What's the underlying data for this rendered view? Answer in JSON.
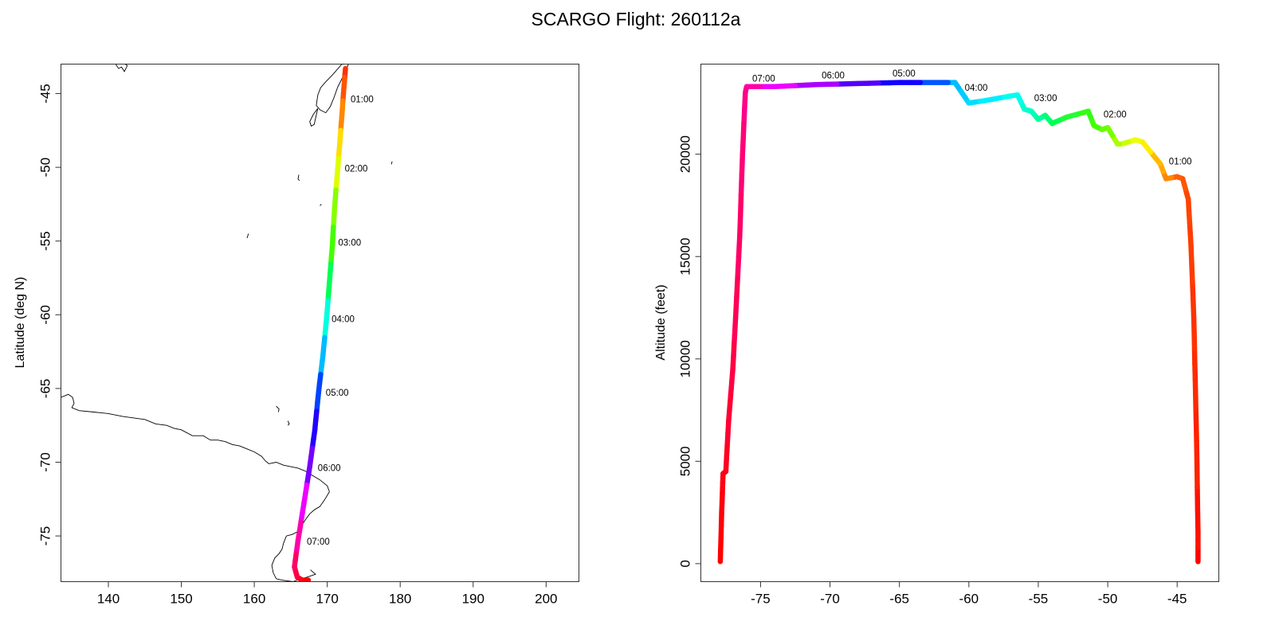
{
  "title": "SCARGO Flight: 260112a",
  "chart_data": [
    {
      "type": "line",
      "panel": "map",
      "title": "",
      "xlabel": "",
      "ylabel": "Latitude (deg N)",
      "xlim": [
        133.5,
        204.5
      ],
      "ylim": [
        -78.1,
        -43.0
      ],
      "xticks": [
        "140",
        "150",
        "160",
        "170",
        "180",
        "190",
        "200"
      ],
      "yticks": [
        "-45",
        "-50",
        "-55",
        "-60",
        "-65",
        "-70",
        "-75"
      ],
      "track": {
        "x": [
          172.5,
          172.3,
          172.0,
          171.7,
          171.4,
          171.0,
          170.7,
          170.3,
          169.9,
          169.4,
          168.8,
          168.3,
          167.6,
          166.8,
          166.0,
          165.5,
          165.9,
          166.6,
          167.4
        ],
        "y": [
          -43.3,
          -44.5,
          -46.5,
          -48.5,
          -50.3,
          -52.8,
          -55.3,
          -57.8,
          -60.3,
          -62.8,
          -65.3,
          -67.8,
          -70.3,
          -72.8,
          -75.3,
          -77.1,
          -77.8,
          -78.0,
          -78.0
        ],
        "color": [
          "#ff3000",
          "#ff5500",
          "#ff8800",
          "#ffdd00",
          "#ddff00",
          "#88ff00",
          "#44ff00",
          "#00ff55",
          "#00ffdd",
          "#00bbff",
          "#0044ff",
          "#2200ff",
          "#7700ff",
          "#ee00ff",
          "#ff00aa",
          "#ff0066",
          "#ff0044",
          "#ff0022",
          "#ff0000"
        ]
      },
      "time_labels": [
        {
          "label": "01:00",
          "x": 173.2,
          "y": -45.6
        },
        {
          "label": "02:00",
          "x": 172.4,
          "y": -50.3
        },
        {
          "label": "03:00",
          "x": 171.5,
          "y": -55.3
        },
        {
          "label": "04:00",
          "x": 170.6,
          "y": -60.5
        },
        {
          "label": "05:00",
          "x": 169.8,
          "y": -65.5
        },
        {
          "label": "06:00",
          "x": 168.7,
          "y": -70.6
        },
        {
          "label": "07:00",
          "x": 167.2,
          "y": -75.6
        }
      ],
      "coastlines": [
        {
          "x": [
            172.0,
            171.3,
            170.6,
            169.8,
            169.1,
            168.7,
            168.5,
            169.0,
            169.8,
            170.4,
            170.9,
            171.4,
            172.0,
            172.6,
            172.9,
            172.7,
            172.3,
            172.0
          ],
          "y": [
            -43.0,
            -43.4,
            -43.8,
            -44.2,
            -44.6,
            -45.1,
            -45.8,
            -46.1,
            -46.3,
            -45.9,
            -45.3,
            -44.6,
            -44.0,
            -43.4,
            -43.0,
            -42.9,
            -43.0,
            -43.0
          ]
        },
        {
          "x": [
            168.7,
            168.1,
            167.6,
            167.8,
            168.2,
            168.7
          ],
          "y": [
            -46.0,
            -46.4,
            -46.9,
            -47.2,
            -47.1,
            -46.0
          ]
        },
        {
          "x": [
            141.0,
            141.4,
            141.8,
            142.2,
            142.6,
            142.3
          ],
          "y": [
            -43.0,
            -43.3,
            -43.2,
            -43.5,
            -43.1,
            -43.0
          ]
        },
        {
          "x": [
            133.5,
            134.5,
            135.1,
            135.3,
            135.0,
            136.0,
            138.0,
            140.0,
            142.0,
            143.5,
            145.0,
            146.5,
            148.0,
            149.0,
            150.0,
            151.5,
            153.0,
            154.0,
            155.0,
            156.0,
            157.0,
            158.0,
            159.0,
            160.0,
            161.0,
            161.5,
            162.0,
            163.0,
            164.0,
            165.0,
            166.0,
            167.0,
            168.0,
            169.0,
            170.0,
            170.3
          ],
          "y": [
            -65.6,
            -65.4,
            -65.6,
            -66.0,
            -66.3,
            -66.5,
            -66.6,
            -66.7,
            -66.9,
            -67.0,
            -67.1,
            -67.4,
            -67.5,
            -67.7,
            -67.8,
            -68.2,
            -68.2,
            -68.5,
            -68.5,
            -68.6,
            -68.8,
            -68.9,
            -69.1,
            -69.3,
            -69.6,
            -69.9,
            -70.1,
            -70.0,
            -70.2,
            -70.3,
            -70.4,
            -70.6,
            -70.9,
            -71.2,
            -71.6,
            -72.0
          ]
        },
        {
          "x": [
            170.3,
            169.7,
            169.0,
            168.3,
            167.6,
            167.0,
            166.5,
            166.0,
            165.2,
            164.4,
            164.0,
            163.8,
            163.4,
            162.8,
            162.4,
            162.6,
            163.0,
            163.8,
            164.6,
            165.3,
            165.9,
            166.5,
            167.2,
            167.8,
            168.4,
            167.7
          ],
          "y": [
            -72.0,
            -72.5,
            -73.0,
            -73.2,
            -73.5,
            -73.9,
            -74.3,
            -74.7,
            -74.9,
            -75.0,
            -75.5,
            -75.9,
            -76.2,
            -76.5,
            -77.0,
            -77.5,
            -77.9,
            -78.0,
            -78.05,
            -78.1,
            -78.0,
            -77.9,
            -77.8,
            -77.7,
            -77.6,
            -77.3
          ]
        },
        {
          "x": [
            159.2,
            159.0
          ],
          "y": [
            -54.5,
            -54.8
          ]
        },
        {
          "x": [
            166.1,
            166.0,
            166.2
          ],
          "y": [
            -50.5,
            -50.8,
            -50.9
          ]
        },
        {
          "x": [
            169.2,
            169.0
          ],
          "y": [
            -52.5,
            -52.6
          ]
        },
        {
          "x": [
            178.9,
            178.8
          ],
          "y": [
            -49.6,
            -49.8
          ]
        },
        {
          "x": [
            163.0,
            163.4,
            163.3
          ],
          "y": [
            -66.2,
            -66.4,
            -66.6
          ]
        },
        {
          "x": [
            164.6,
            164.8,
            164.6
          ],
          "y": [
            -67.2,
            -67.4,
            -67.5
          ]
        }
      ]
    },
    {
      "type": "line",
      "panel": "altitude",
      "title": "",
      "xlabel": "",
      "ylabel": "Altitude (feet)",
      "xlim": [
        -79.3,
        -42.0
      ],
      "ylim": [
        -880,
        24400
      ],
      "xticks": [
        "-75",
        "-70",
        "-65",
        "-60",
        "-55",
        "-50",
        "-45"
      ],
      "yticks": [
        "0",
        "5000",
        "10000",
        "15000",
        "20000"
      ],
      "track": {
        "x": [
          -43.5,
          -43.5,
          -43.6,
          -43.7,
          -43.8,
          -44.0,
          -44.2,
          -44.6,
          -45.0,
          -45.8,
          -46.2,
          -46.3,
          -47.5,
          -48.0,
          -49.0,
          -49.3,
          -50.0,
          -50.4,
          -51.0,
          -51.4,
          -53.0,
          -54.0,
          -54.5,
          -55.0,
          -55.5,
          -56.0,
          -56.5,
          -59.0,
          -60.0,
          -60.5,
          -61.0,
          -62.0,
          -65.0,
          -68.0,
          -71.0,
          -74.0,
          -76.0,
          -76.1,
          -76.3,
          -76.5,
          -76.8,
          -77.0,
          -77.3,
          -77.5,
          -77.7,
          -77.8,
          -77.9
        ],
        "y": [
          100,
          1500,
          6000,
          9000,
          12000,
          15500,
          17800,
          18800,
          18900,
          18800,
          19500,
          19600,
          20600,
          20700,
          20500,
          20500,
          21300,
          21200,
          21400,
          22100,
          21800,
          21500,
          21900,
          21700,
          22100,
          22200,
          22900,
          22600,
          22500,
          23000,
          23500,
          23500,
          23500,
          23450,
          23400,
          23300,
          23300,
          23000,
          20000,
          16000,
          12000,
          9500,
          7000,
          4500,
          4400,
          2500,
          100
        ],
        "color": [
          "#ff0000",
          "#ff1100",
          "#ff2200",
          "#ff2a00",
          "#ff3300",
          "#ff3d00",
          "#ff4400",
          "#ff5500",
          "#ff6000",
          "#ff8800",
          "#ffaa00",
          "#ffbb00",
          "#ffee00",
          "#eeff00",
          "#ccff00",
          "#aaff00",
          "#77ff00",
          "#66ff00",
          "#44ff00",
          "#33ff11",
          "#22ff33",
          "#00ff55",
          "#00ff77",
          "#00ff99",
          "#00ffbb",
          "#00ffcc",
          "#00ffee",
          "#00eeff",
          "#00ddff",
          "#00ccff",
          "#00bbff",
          "#0055ff",
          "#1100ff",
          "#5500ff",
          "#aa00ff",
          "#ee00ff",
          "#ff00aa",
          "#ff0088",
          "#ff0077",
          "#ff0066",
          "#ff0055",
          "#ff0044",
          "#ff0033",
          "#ff0022",
          "#ff0011",
          "#ff0008",
          "#ff0000"
        ]
      },
      "time_labels": [
        {
          "label": "01:00",
          "x": -45.6,
          "y": 19500
        },
        {
          "label": "02:00",
          "x": -50.3,
          "y": 21800
        },
        {
          "label": "03:00",
          "x": -55.3,
          "y": 22600
        },
        {
          "label": "04:00",
          "x": -60.3,
          "y": 23100
        },
        {
          "label": "05:00",
          "x": -65.5,
          "y": 23800
        },
        {
          "label": "06:00",
          "x": -70.6,
          "y": 23700
        },
        {
          "label": "07:00",
          "x": -75.6,
          "y": 23550
        }
      ]
    }
  ]
}
